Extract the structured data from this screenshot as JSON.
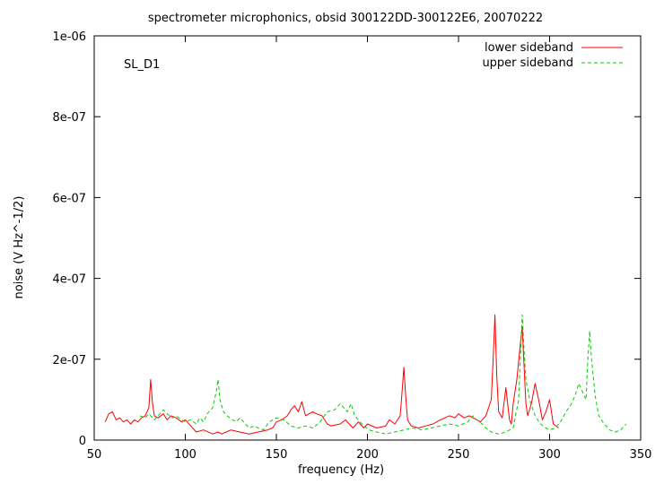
{
  "chart_data": {
    "type": "line",
    "title": "spectrometer microphonics, obsid 300122DD-300122E6, 20070222",
    "annotation": "SL_D1",
    "xlabel": "frequency (Hz)",
    "ylabel": "noise (V Hz^-1/2)",
    "xlim": [
      50,
      350
    ],
    "ylim": [
      0,
      1e-06
    ],
    "x_ticks": [
      50,
      100,
      150,
      200,
      250,
      300,
      350
    ],
    "x_tick_labels": [
      "50",
      "100",
      "150",
      "200",
      "250",
      "300",
      "350"
    ],
    "y_ticks": [
      0,
      2e-07,
      4e-07,
      6e-07,
      8e-07,
      1e-06
    ],
    "y_tick_labels": [
      "0",
      "2e-07",
      "4e-07",
      "6e-07",
      "8e-07",
      "1e-06"
    ],
    "grid": false,
    "legend_position": "top-right",
    "series": [
      {
        "name": "lower sideband",
        "color": "#ff0000",
        "dash": "solid",
        "x": [
          56,
          58,
          60,
          62,
          64,
          66,
          68,
          70,
          72,
          74,
          76,
          78,
          80,
          81,
          82,
          83,
          85,
          88,
          90,
          92,
          95,
          98,
          100,
          103,
          106,
          110,
          115,
          118,
          120,
          125,
          130,
          135,
          140,
          145,
          148,
          150,
          153,
          156,
          158,
          160,
          162,
          164,
          166,
          170,
          172,
          175,
          178,
          180,
          185,
          188,
          190,
          192,
          195,
          198,
          200,
          205,
          210,
          212,
          215,
          218,
          219,
          220,
          221,
          222,
          224,
          228,
          232,
          236,
          240,
          245,
          248,
          250,
          253,
          256,
          260,
          262,
          265,
          268,
          269,
          270,
          271,
          272,
          274,
          276,
          278,
          279,
          280,
          282,
          284,
          285,
          286,
          287,
          288,
          290,
          292,
          294,
          296,
          298,
          300,
          302,
          305
        ],
        "y": [
          4.5e-08,
          6.5e-08,
          7e-08,
          5e-08,
          5.5e-08,
          4.5e-08,
          5e-08,
          4e-08,
          5e-08,
          4.5e-08,
          5.5e-08,
          6e-08,
          8e-08,
          1.5e-07,
          9e-08,
          6e-08,
          5.5e-08,
          6.5e-08,
          5e-08,
          6e-08,
          5.5e-08,
          4.5e-08,
          5e-08,
          3.5e-08,
          2e-08,
          2.5e-08,
          1.5e-08,
          2e-08,
          1.5e-08,
          2.5e-08,
          2e-08,
          1.5e-08,
          2e-08,
          2.5e-08,
          3e-08,
          4.5e-08,
          5e-08,
          6e-08,
          7.5e-08,
          8.5e-08,
          7e-08,
          9.5e-08,
          6e-08,
          7e-08,
          6.5e-08,
          6e-08,
          4e-08,
          3.5e-08,
          4e-08,
          5e-08,
          4e-08,
          3e-08,
          4.5e-08,
          3e-08,
          4e-08,
          3e-08,
          3.5e-08,
          5e-08,
          4e-08,
          6e-08,
          1.2e-07,
          1.8e-07,
          1.1e-07,
          5e-08,
          3.5e-08,
          3e-08,
          3.5e-08,
          4e-08,
          5e-08,
          6e-08,
          5.5e-08,
          6.5e-08,
          5.5e-08,
          6e-08,
          5e-08,
          4.5e-08,
          6e-08,
          1e-07,
          2e-07,
          3.1e-07,
          1.6e-07,
          7e-08,
          5.5e-08,
          1.3e-07,
          5e-08,
          4e-08,
          9e-08,
          1.5e-07,
          2.4e-07,
          2.8e-07,
          1.8e-07,
          9e-08,
          6e-08,
          9e-08,
          1.4e-07,
          1e-07,
          5e-08,
          7e-08,
          1e-07,
          4e-08,
          3e-08
        ]
      },
      {
        "name": "upper sideband",
        "color": "#00cc00",
        "dash": "4,3",
        "x": [
          75,
          78,
          80,
          83,
          85,
          88,
          90,
          93,
          95,
          98,
          100,
          103,
          106,
          108,
          110,
          112,
          115,
          117,
          118,
          119,
          121,
          123,
          126,
          128,
          130,
          133,
          135,
          138,
          140,
          143,
          146,
          150,
          154,
          158,
          162,
          166,
          170,
          174,
          178,
          182,
          185,
          187,
          189,
          191,
          193,
          195,
          198,
          201,
          205,
          210,
          215,
          220,
          225,
          230,
          235,
          240,
          245,
          250,
          255,
          258,
          260,
          263,
          265,
          268,
          272,
          276,
          280,
          283,
          284,
          285,
          286,
          287,
          289,
          292,
          295,
          298,
          300,
          303,
          306,
          309,
          312,
          314,
          316,
          318,
          320,
          321,
          322,
          323,
          325,
          327,
          330,
          333,
          336,
          339,
          342
        ],
        "y": [
          6e-08,
          5.5e-08,
          6.5e-08,
          5e-08,
          6e-08,
          7.5e-08,
          6.5e-08,
          5.5e-08,
          6e-08,
          5e-08,
          4.5e-08,
          5e-08,
          4e-08,
          5.5e-08,
          4.5e-08,
          6.5e-08,
          8e-08,
          1.2e-07,
          1.5e-07,
          1e-07,
          7e-08,
          6e-08,
          5e-08,
          4.5e-08,
          5.5e-08,
          4e-08,
          3e-08,
          3.5e-08,
          3e-08,
          2.5e-08,
          4.5e-08,
          5.5e-08,
          5e-08,
          3.5e-08,
          3e-08,
          3.5e-08,
          3e-08,
          4.5e-08,
          7e-08,
          7.5e-08,
          9e-08,
          8e-08,
          7e-08,
          9e-08,
          6e-08,
          5e-08,
          3.5e-08,
          2.5e-08,
          2e-08,
          1.5e-08,
          2e-08,
          2.5e-08,
          3e-08,
          2.5e-08,
          3e-08,
          3.5e-08,
          4e-08,
          3.5e-08,
          4.5e-08,
          6e-08,
          5e-08,
          4e-08,
          3e-08,
          2e-08,
          1.5e-08,
          2e-08,
          3e-08,
          1e-07,
          2.1e-07,
          3.1e-07,
          2.2e-07,
          1.5e-07,
          1e-07,
          6e-08,
          4e-08,
          3e-08,
          2.5e-08,
          3e-08,
          4.5e-08,
          7e-08,
          9e-08,
          1.1e-07,
          1.4e-07,
          1.2e-07,
          1e-07,
          2e-07,
          2.7e-07,
          2e-07,
          1.1e-07,
          6e-08,
          4e-08,
          2.5e-08,
          2e-08,
          2.5e-08,
          4e-08
        ]
      }
    ]
  }
}
